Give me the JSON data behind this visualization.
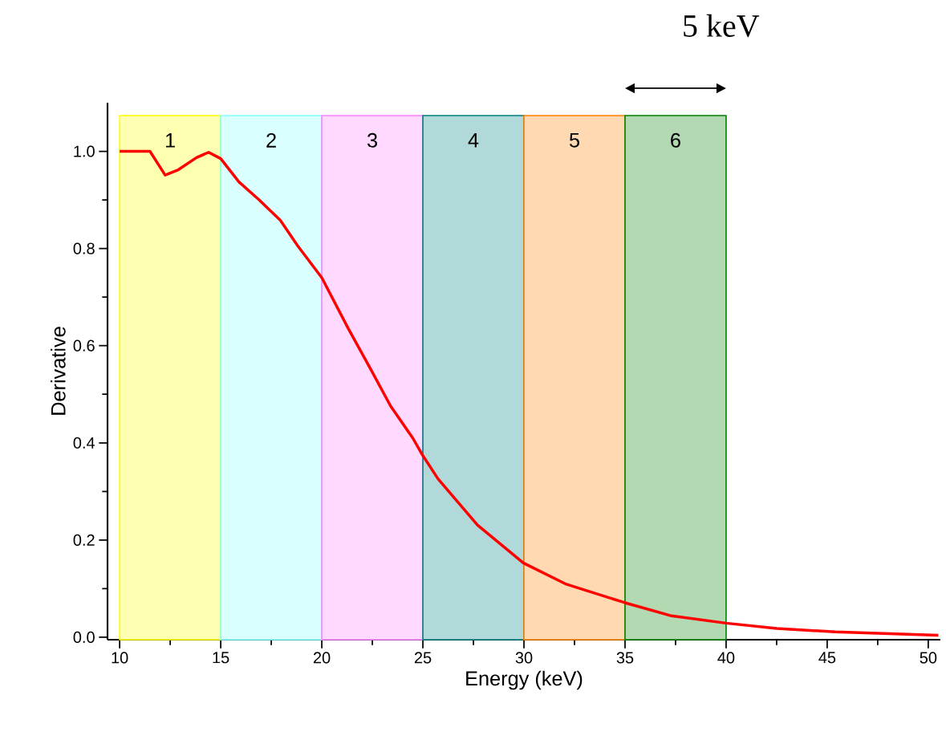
{
  "chart_data": {
    "type": "line",
    "xlabel": "Energy (keV)",
    "ylabel": "Derivative",
    "x": [
      10,
      11.5,
      12.25,
      12.9,
      13.8,
      14.4,
      15.0,
      15.9,
      16.9,
      17.95,
      18.8,
      20.0,
      21.3,
      22.4,
      23.4,
      24.5,
      24.95,
      25.75,
      27.7,
      29.97,
      32.1,
      35.0,
      37.3,
      40.0,
      42.5,
      45.4,
      50.5
    ],
    "series": [
      {
        "color": "#ff0000",
        "values": [
          1.0,
          1.0,
          0.951,
          0.962,
          0.987,
          0.998,
          0.985,
          0.937,
          0.9,
          0.858,
          0.806,
          0.74,
          0.636,
          0.553,
          0.476,
          0.41,
          0.377,
          0.326,
          0.231,
          0.153,
          0.109,
          0.071,
          0.044,
          0.029,
          0.018,
          0.011,
          0.004
        ]
      }
    ],
    "xlim": [
      9.4,
      50.6
    ],
    "ylim": [
      -0.005,
      1.1
    ],
    "xticks": [
      10,
      15,
      20,
      25,
      30,
      35,
      40,
      45,
      50
    ],
    "yticks": [
      {
        "value": 0,
        "label": "0.0"
      },
      {
        "value": 0.2,
        "label": "0.2"
      },
      {
        "value": 0.4,
        "label": "0.4"
      },
      {
        "value": 0.6,
        "label": "0.6"
      },
      {
        "value": 0.8,
        "label": "0.8"
      },
      {
        "value": 1.0,
        "label": "1.0"
      }
    ],
    "bands": [
      {
        "axis": "x",
        "from": 10,
        "to": 15,
        "label": "1",
        "color": "#ffff00"
      },
      {
        "axis": "x",
        "from": 15,
        "to": 20,
        "label": "2",
        "color": "#80ffff"
      },
      {
        "axis": "x",
        "from": 20,
        "to": 25,
        "label": "3",
        "color": "#ff80ff"
      },
      {
        "axis": "x",
        "from": 25,
        "to": 30,
        "label": "4",
        "color": "#008080"
      },
      {
        "axis": "x",
        "from": 30,
        "to": 35,
        "label": "5",
        "color": "#ff8000"
      },
      {
        "axis": "x",
        "from": 35,
        "to": 40,
        "label": "6",
        "color": "#008000"
      }
    ],
    "annotations": [
      "5 keV"
    ],
    "line_style": "solid",
    "marker": "none"
  }
}
